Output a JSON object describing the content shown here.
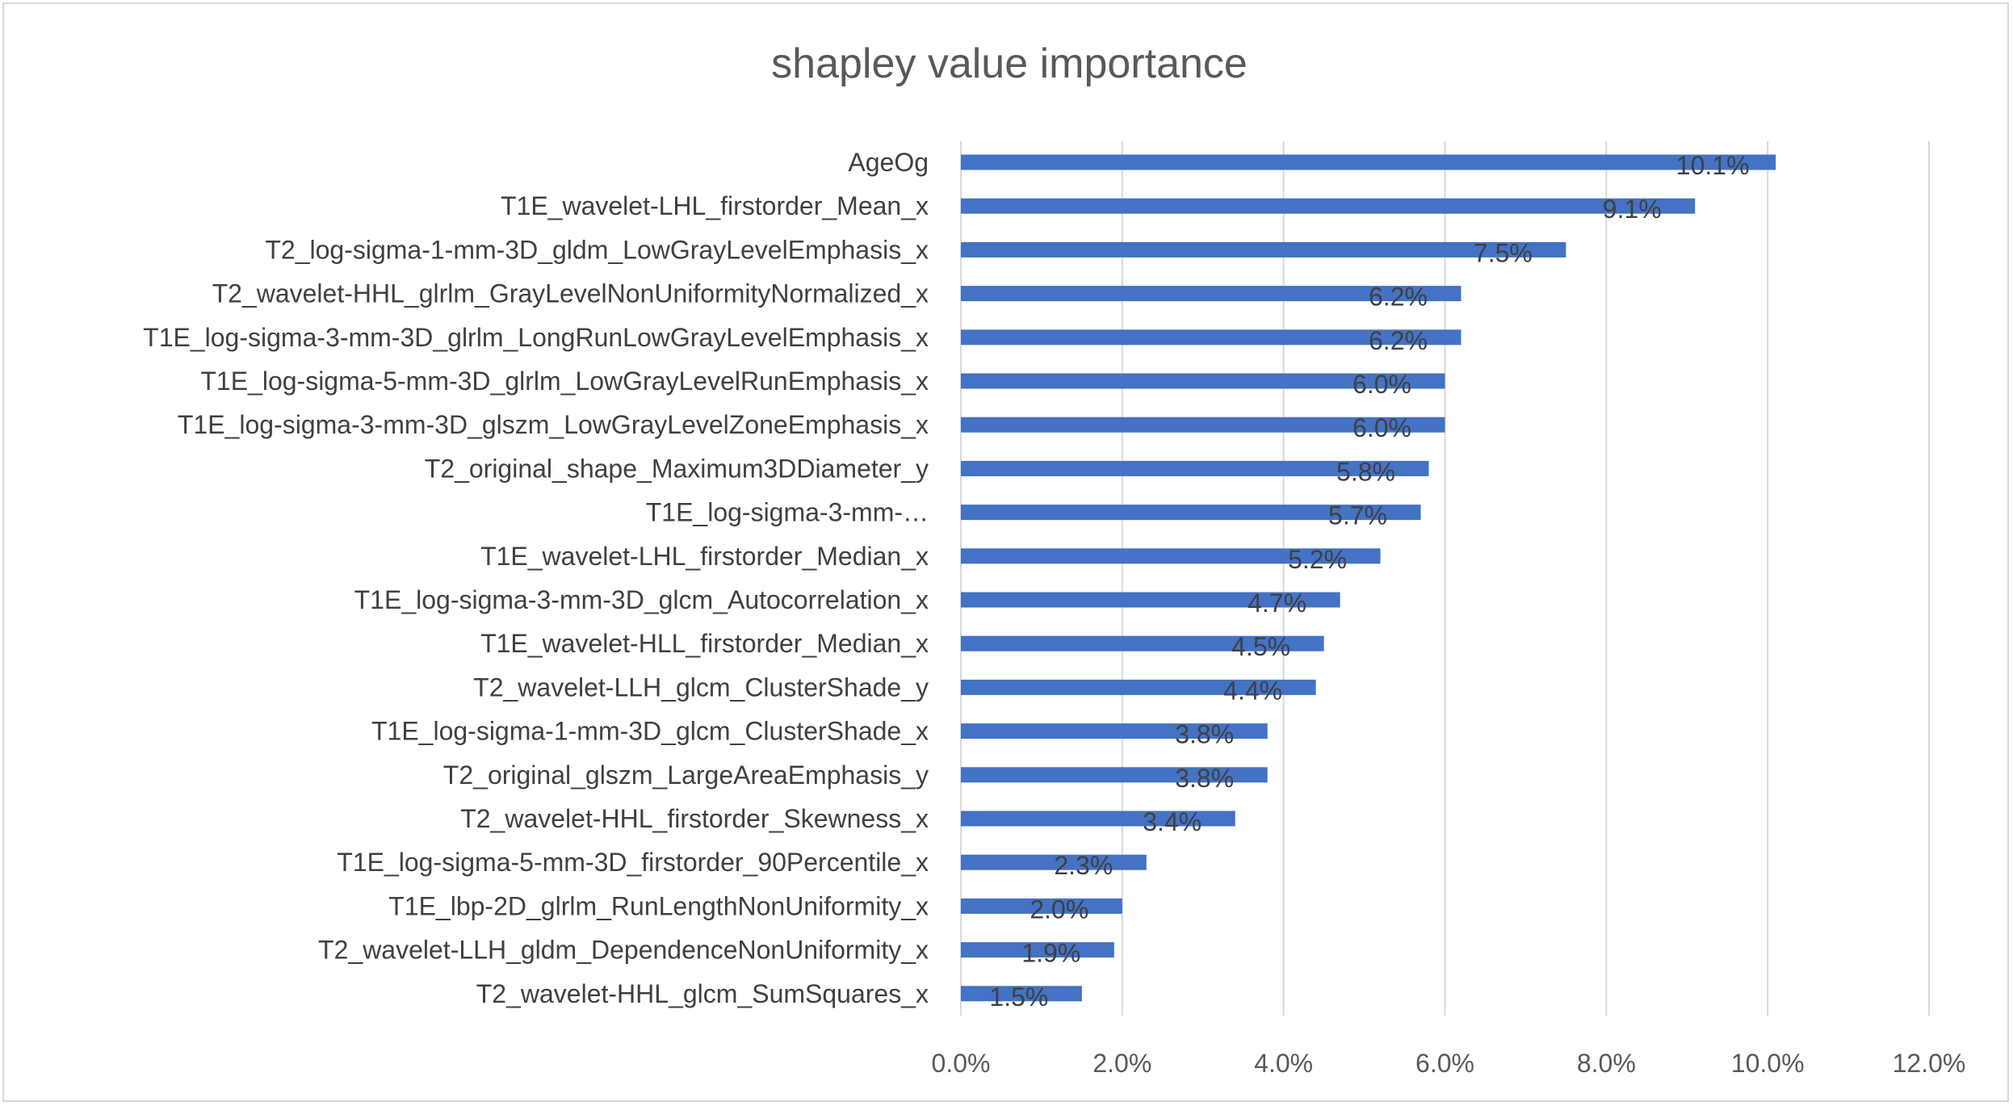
{
  "chart_data": {
    "type": "bar",
    "orientation": "horizontal",
    "title": "shapley value importance",
    "xlabel": "",
    "ylabel": "",
    "xlim": [
      0,
      0.12
    ],
    "x_ticks": [
      0,
      0.02,
      0.04,
      0.06,
      0.08,
      0.1,
      0.12
    ],
    "x_tick_labels": [
      "0.0%",
      "2.0%",
      "4.0%",
      "6.0%",
      "8.0%",
      "10.0%",
      "12.0%"
    ],
    "grid": "vertical-major",
    "legend": "none",
    "bar_color": "#4472c4",
    "categories": [
      "AgeOg",
      "T1E_wavelet-LHL_firstorder_Mean_x",
      "T2_log-sigma-1-mm-3D_gldm_LowGrayLevelEmphasis_x",
      "T2_wavelet-HHL_glrlm_GrayLevelNonUniformityNormalized_x",
      "T1E_log-sigma-3-mm-3D_glrlm_LongRunLowGrayLevelEmphasis_x",
      "T1E_log-sigma-5-mm-3D_glrlm_LowGrayLevelRunEmphasis_x",
      "T1E_log-sigma-3-mm-3D_glszm_LowGrayLevelZoneEmphasis_x",
      "T2_original_shape_Maximum3DDiameter_y",
      "T1E_log-sigma-3-mm-…",
      "T1E_wavelet-LHL_firstorder_Median_x",
      "T1E_log-sigma-3-mm-3D_glcm_Autocorrelation_x",
      "T1E_wavelet-HLL_firstorder_Median_x",
      "T2_wavelet-LLH_glcm_ClusterShade_y",
      "T1E_log-sigma-1-mm-3D_glcm_ClusterShade_x",
      "T2_original_glszm_LargeAreaEmphasis_y",
      "T2_wavelet-HHL_firstorder_Skewness_x",
      "T1E_log-sigma-5-mm-3D_firstorder_90Percentile_x",
      "T1E_lbp-2D_glrlm_RunLengthNonUniformity_x",
      "T2_wavelet-LLH_gldm_DependenceNonUniformity_x",
      "T2_wavelet-HHL_glcm_SumSquares_x"
    ],
    "values": [
      0.101,
      0.091,
      0.075,
      0.062,
      0.062,
      0.06,
      0.06,
      0.058,
      0.057,
      0.052,
      0.047,
      0.045,
      0.044,
      0.038,
      0.038,
      0.034,
      0.023,
      0.02,
      0.019,
      0.015
    ],
    "data_labels": [
      "10.1%",
      "9.1%",
      "7.5%",
      "6.2%",
      "6.2%",
      "6.0%",
      "6.0%",
      "5.8%",
      "5.7%",
      "5.2%",
      "4.7%",
      "4.5%",
      "4.4%",
      "3.8%",
      "3.8%",
      "3.4%",
      "2.3%",
      "2.0%",
      "1.9%",
      "1.5%"
    ]
  }
}
